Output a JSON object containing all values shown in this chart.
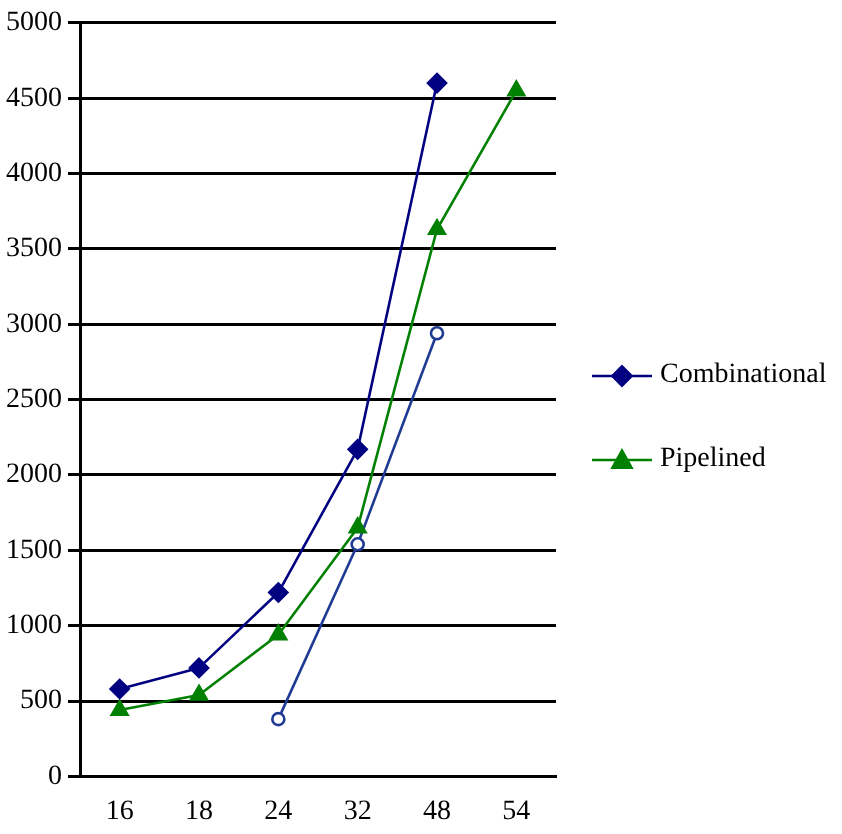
{
  "chart_data": {
    "type": "line",
    "categories": [
      "16",
      "18",
      "24",
      "32",
      "48",
      "54"
    ],
    "series": [
      {
        "name": "Combinational",
        "color": "#000080",
        "marker": "diamond",
        "values": [
          580,
          720,
          1220,
          2170,
          4600,
          null
        ]
      },
      {
        "name": "Pipelined",
        "color": "#008000",
        "marker": "triangle",
        "values": [
          440,
          540,
          940,
          1650,
          3630,
          4550
        ]
      },
      {
        "color": "#1f3a93",
        "marker": "circle",
        "values": [
          null,
          null,
          380,
          1540,
          2940,
          null
        ]
      }
    ],
    "ylim": [
      0,
      5000
    ],
    "yticks": [
      0,
      500,
      1000,
      1500,
      2000,
      2500,
      3000,
      3500,
      4000,
      4500,
      5000
    ],
    "grid": "y",
    "legend": "right"
  }
}
